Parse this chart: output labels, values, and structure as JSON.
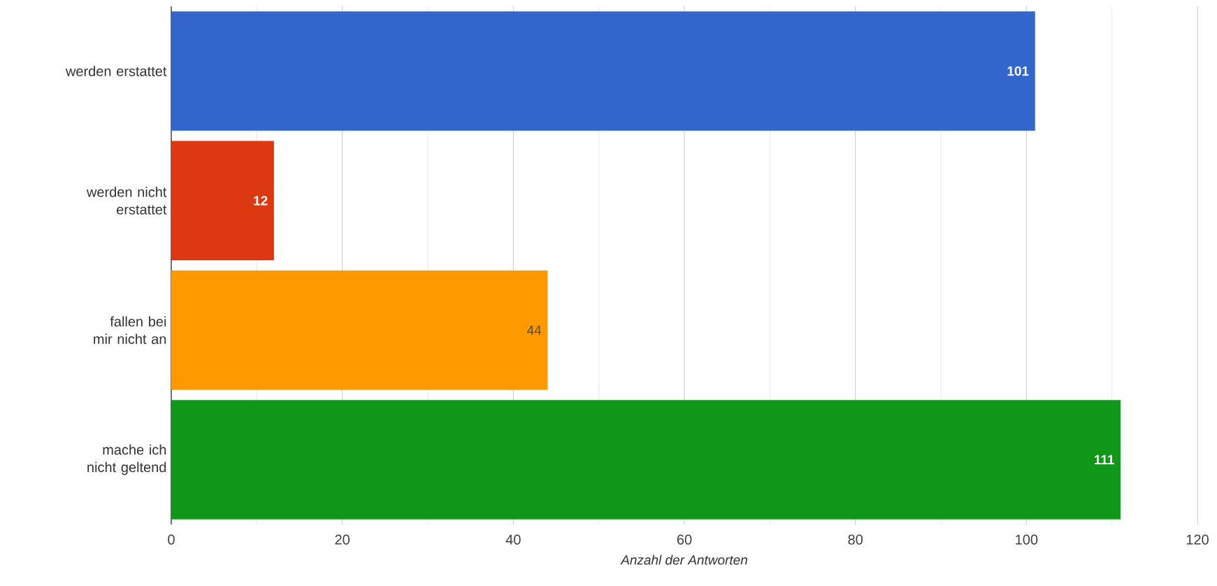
{
  "chart_data": {
    "type": "bar",
    "orientation": "horizontal",
    "xlabel": "Anzahl der Antworten",
    "categories": [
      "werden erstattet",
      "werden nicht erstattet",
      "fallen bei mir nicht an",
      "mache ich nicht geltend"
    ],
    "values": [
      101,
      12,
      44,
      111
    ],
    "colors": [
      "#3366cc",
      "#dc3912",
      "#ff9900",
      "#109618"
    ],
    "xlim": [
      0,
      120
    ],
    "xticks": [
      0,
      20,
      40,
      60,
      80,
      100,
      120
    ],
    "grid": "x",
    "data_labels": true
  }
}
